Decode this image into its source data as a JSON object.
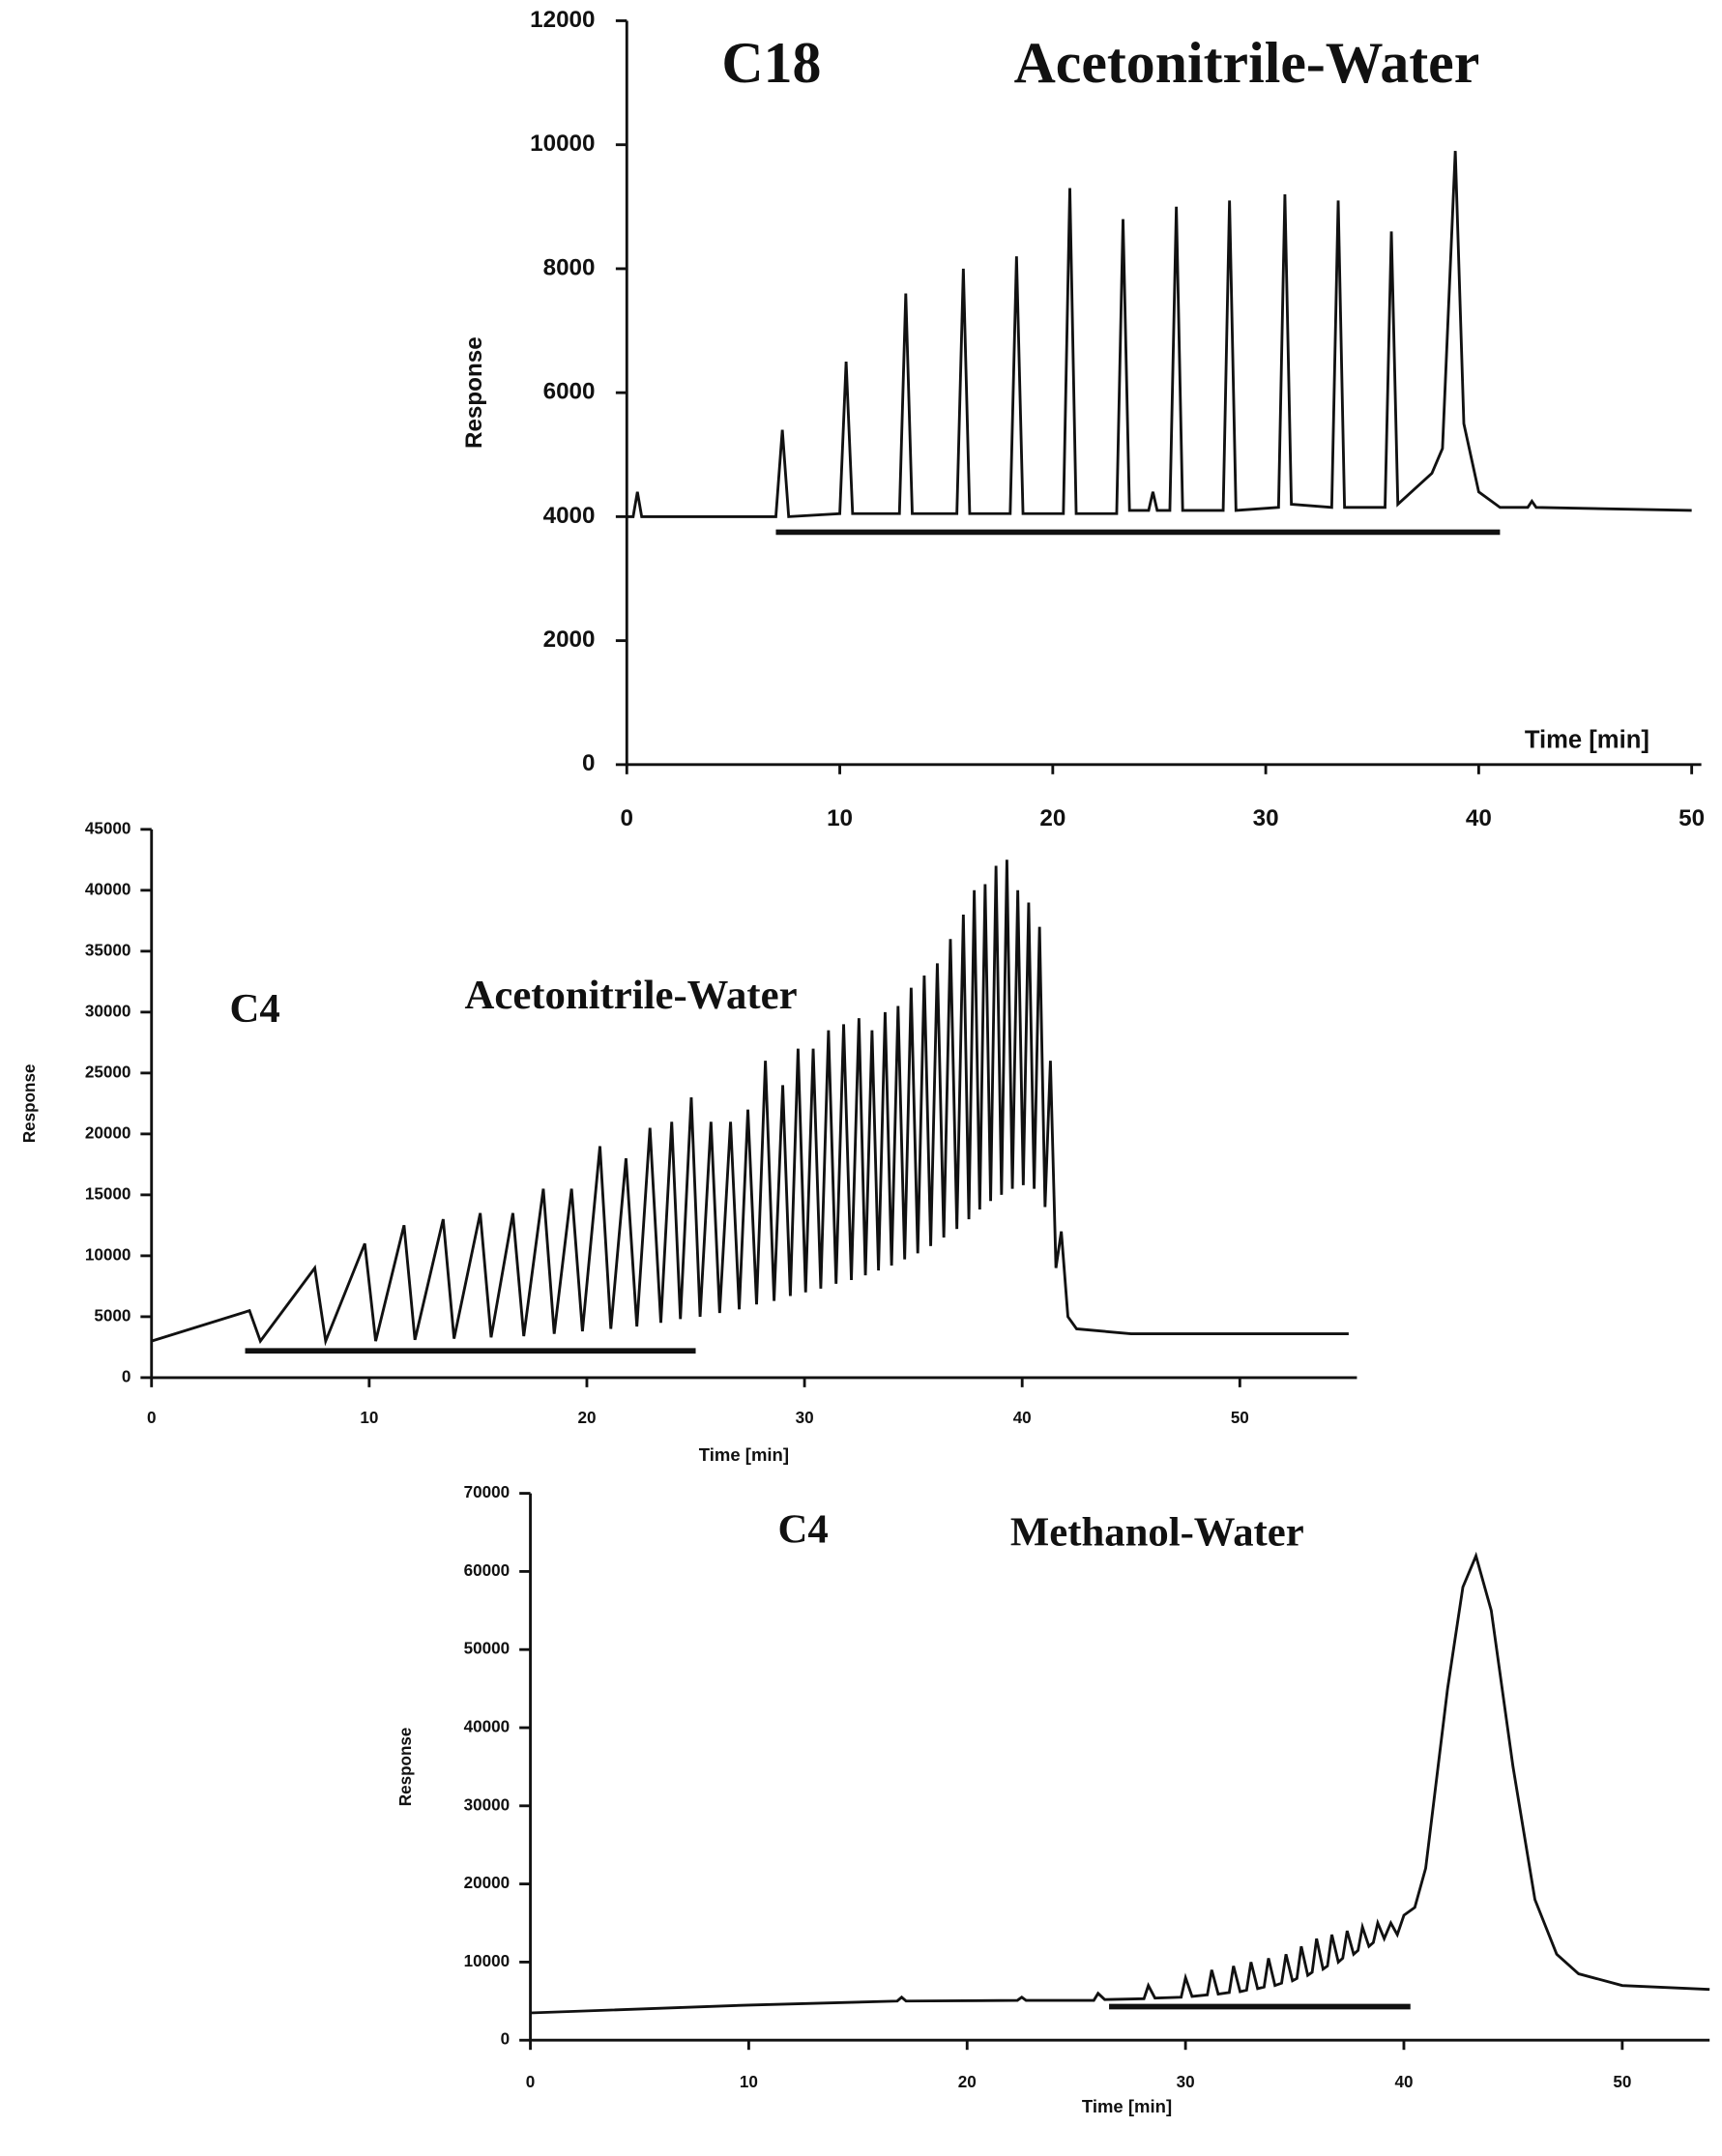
{
  "chart_data": [
    {
      "type": "line",
      "title": "C18",
      "subtitle": "Acetonitrile-Water",
      "ylabel": "Response",
      "xlabel": "Time [min]",
      "xlim": [
        0,
        50
      ],
      "xticks": [
        0,
        10,
        20,
        30,
        40,
        50
      ],
      "ylim": [
        0,
        12000
      ],
      "yticks": [
        0,
        2000,
        4000,
        6000,
        8000,
        10000,
        12000
      ],
      "color": "#111111",
      "x": [
        0,
        0.3,
        0.5,
        0.7,
        7.0,
        7.3,
        7.6,
        10.0,
        10.3,
        10.6,
        12.8,
        13.1,
        13.4,
        15.5,
        15.8,
        16.1,
        18.0,
        18.3,
        18.6,
        20.5,
        20.8,
        21.1,
        23.0,
        23.3,
        23.6,
        24.5,
        24.7,
        24.9,
        25.5,
        25.8,
        26.1,
        28.0,
        28.3,
        28.6,
        30.6,
        30.9,
        31.2,
        33.1,
        33.4,
        33.7,
        35.6,
        35.9,
        36.2,
        37.8,
        38.3,
        38.9,
        39.3,
        40,
        41,
        42.3,
        42.5,
        42.7,
        50
      ],
      "values": [
        4000,
        4000,
        4400,
        4000,
        4000,
        5400,
        4000,
        4050,
        6500,
        4050,
        4050,
        7600,
        4050,
        4050,
        8000,
        4050,
        4050,
        8200,
        4050,
        4050,
        9300,
        4050,
        4050,
        8800,
        4100,
        4100,
        4400,
        4100,
        4100,
        9000,
        4100,
        4100,
        9100,
        4100,
        4150,
        9200,
        4200,
        4150,
        9100,
        4150,
        4150,
        8600,
        4200,
        4700,
        5100,
        9900,
        5500,
        4400,
        4150,
        4150,
        4250,
        4150,
        4100
      ],
      "gradient_bar": {
        "x": [
          7,
          41
        ],
        "y": 3750
      }
    },
    {
      "type": "line",
      "title": "C4",
      "subtitle": "Acetonitrile-Water",
      "ylabel": "Response",
      "xlabel": "Time [min]",
      "xlim": [
        0,
        55
      ],
      "xticks": [
        0,
        10,
        20,
        30,
        40,
        50
      ],
      "ylim": [
        0,
        45000
      ],
      "yticks": [
        0,
        5000,
        10000,
        15000,
        20000,
        25000,
        30000,
        35000,
        40000,
        45000
      ],
      "color": "#111111",
      "x": [
        0,
        4.5,
        5,
        7.5,
        8,
        9.8,
        10.3,
        11.6,
        12.1,
        13.4,
        13.9,
        15.1,
        15.6,
        16.6,
        17.1,
        18,
        18.5,
        19.3,
        19.8,
        20.6,
        21.1,
        21.8,
        22.3,
        22.9,
        23.4,
        23.9,
        24.3,
        24.8,
        25.2,
        25.7,
        26.1,
        26.6,
        27,
        27.4,
        27.8,
        28.2,
        28.6,
        29,
        29.35,
        29.7,
        30.05,
        30.4,
        30.75,
        31.1,
        31.45,
        31.8,
        32.15,
        32.5,
        32.8,
        33.1,
        33.4,
        33.7,
        34,
        34.3,
        34.6,
        34.9,
        35.2,
        35.5,
        35.8,
        36.1,
        36.4,
        36.7,
        37,
        37.3,
        37.55,
        37.8,
        38.05,
        38.3,
        38.55,
        38.8,
        39.05,
        39.3,
        39.55,
        39.8,
        40.05,
        40.3,
        40.55,
        40.8,
        41.05,
        41.3,
        41.55,
        41.8,
        42.1,
        42.5,
        45,
        55
      ],
      "values": [
        3000,
        5500,
        3000,
        9000,
        3000,
        11000,
        3000,
        12500,
        3100,
        13000,
        3200,
        13500,
        3300,
        13500,
        3400,
        15500,
        3600,
        15500,
        3800,
        19000,
        4000,
        18000,
        4200,
        20500,
        4500,
        21000,
        4800,
        23000,
        5000,
        21000,
        5300,
        21000,
        5600,
        22000,
        6000,
        26000,
        6300,
        24000,
        6700,
        27000,
        7000,
        27000,
        7300,
        28500,
        7700,
        29000,
        8000,
        29500,
        8400,
        28500,
        8800,
        30000,
        9200,
        30500,
        9700,
        32000,
        10200,
        33000,
        10800,
        34000,
        11500,
        36000,
        12200,
        38000,
        13000,
        40000,
        13800,
        40500,
        14500,
        42000,
        15000,
        42500,
        15500,
        40000,
        15800,
        39000,
        15500,
        37000,
        14000,
        26000,
        9000,
        12000,
        5000,
        4000,
        3600,
        3600
      ],
      "gradient_bar": {
        "x": [
          4.3,
          25
        ],
        "y": 2200
      }
    },
    {
      "type": "line",
      "title": "C4",
      "subtitle": "Methanol-Water",
      "ylabel": "Response",
      "xlabel": "Time [min]",
      "xlim": [
        0,
        54
      ],
      "xticks": [
        0,
        10,
        20,
        30,
        40,
        50
      ],
      "ylim": [
        0,
        70000
      ],
      "yticks": [
        0,
        10000,
        20000,
        30000,
        40000,
        50000,
        60000,
        70000
      ],
      "color": "#111111",
      "x": [
        0,
        10,
        16.8,
        17,
        17.2,
        22.3,
        22.5,
        22.7,
        25.8,
        26,
        26.3,
        28.1,
        28.3,
        28.6,
        29.8,
        30,
        30.3,
        31,
        31.2,
        31.5,
        32,
        32.2,
        32.5,
        32.8,
        33,
        33.3,
        33.6,
        33.8,
        34.1,
        34.4,
        34.6,
        34.9,
        35.1,
        35.3,
        35.6,
        35.8,
        36,
        36.3,
        36.5,
        36.7,
        37,
        37.2,
        37.4,
        37.7,
        37.9,
        38.1,
        38.4,
        38.6,
        38.8,
        39.1,
        39.4,
        39.7,
        40,
        40.5,
        41,
        42,
        42.7,
        43.3,
        44,
        45,
        46,
        47,
        48,
        50,
        54
      ],
      "values": [
        3500,
        4500,
        5000,
        5500,
        5000,
        5100,
        5500,
        5100,
        5100,
        6000,
        5200,
        5300,
        7000,
        5400,
        5500,
        8000,
        5600,
        5800,
        9000,
        5900,
        6100,
        9500,
        6200,
        6400,
        10000,
        6600,
        6800,
        10500,
        7000,
        7300,
        11000,
        7600,
        7900,
        12000,
        8300,
        8700,
        13000,
        9100,
        9500,
        13500,
        10000,
        10500,
        14000,
        11000,
        11500,
        14500,
        12000,
        12500,
        15000,
        13000,
        15000,
        13500,
        16000,
        17000,
        22000,
        45000,
        58000,
        62000,
        55000,
        35000,
        18000,
        11000,
        8500,
        7000,
        6500
      ],
      "gradient_bar": {
        "x": [
          26.5,
          40.3
        ],
        "y": 4300
      }
    }
  ]
}
